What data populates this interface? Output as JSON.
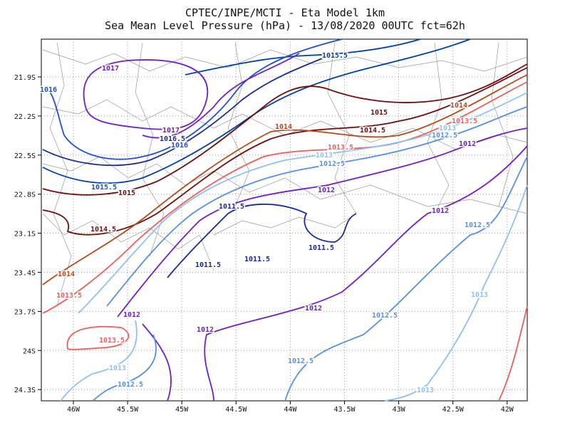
{
  "title": {
    "line1": "CPTEC/INPE/MCTI -  Eta Model 1km",
    "line2": "Sea Mean Level Pressure (hPa) - 13/08/2020 00UTC fct=62h"
  },
  "x_axis": {
    "ticks": [
      "46W",
      "45.5W",
      "45W",
      "44.5W",
      "44W",
      "43.5W",
      "43W",
      "42.5W",
      "42W"
    ]
  },
  "y_axis": {
    "ticks": [
      "21.9S",
      "22.2S",
      "22.5S",
      "22.8S",
      "23.1S",
      "23.4S",
      "23.7S",
      "24S",
      "24.3S"
    ]
  },
  "contours": {
    "labels": [
      "1015.5",
      "1017",
      "1016",
      "1015",
      "1014",
      "1013.5",
      "1014.5",
      "1014",
      "1013",
      "1012.5",
      "1012",
      "1017",
      "1016.5",
      "1016",
      "1013.5",
      "1013",
      "1012.5",
      "1015.5",
      "1015",
      "1012",
      "1011.5",
      "1012",
      "1014.5",
      "1012.5",
      "1011.5",
      "1011.5",
      "1011.5",
      "1014",
      "1013.5",
      "1013",
      "1012",
      "1012",
      "1012.5",
      "1012",
      "1013.5",
      "1012.5",
      "1013",
      "1012.5",
      "1013"
    ]
  }
}
